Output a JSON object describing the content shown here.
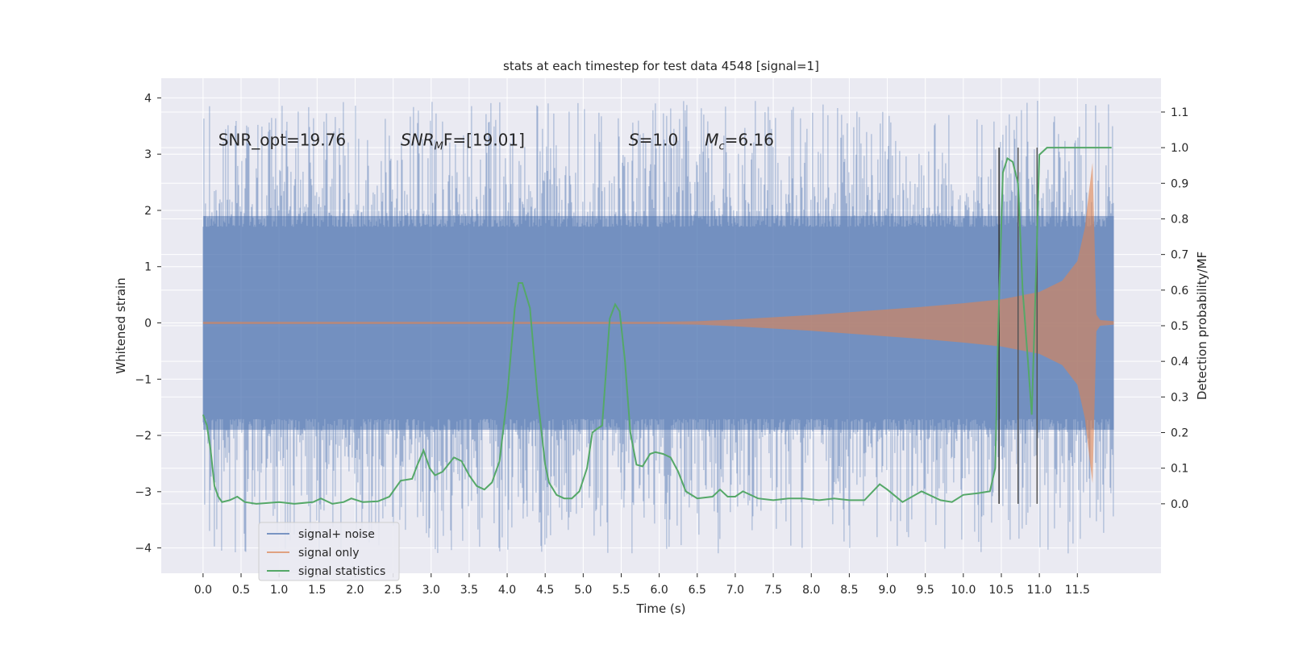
{
  "chart_data": {
    "type": "line",
    "title": "stats at each timestep for test data 4548 [signal=1]",
    "xlabel": "Time (s)",
    "ylabel": "Whitened strain",
    "y2label": "Detection probability/MF",
    "xlim": [
      -0.55,
      12.6
    ],
    "ylim": [
      -4.45,
      4.35
    ],
    "y2lim": [
      -0.195,
      1.195
    ],
    "xticks": [
      0.0,
      0.5,
      1.0,
      1.5,
      2.0,
      2.5,
      3.0,
      3.5,
      4.0,
      4.5,
      5.0,
      5.5,
      6.0,
      6.5,
      7.0,
      7.5,
      8.0,
      8.5,
      9.0,
      9.5,
      10.0,
      10.5,
      11.0,
      11.5
    ],
    "xtick_labels": [
      "0.0",
      "0.5",
      "1.0",
      "1.5",
      "2.0",
      "2.5",
      "3.0",
      "3.5",
      "4.0",
      "4.5",
      "5.0",
      "5.5",
      "6.0",
      "6.5",
      "7.0",
      "7.5",
      "8.0",
      "8.5",
      "9.0",
      "9.5",
      "10.0",
      "10.5",
      "11.0",
      "11.5"
    ],
    "yticks": [
      4,
      3,
      2,
      1,
      0,
      -1,
      -2,
      -3,
      -4
    ],
    "ytick_labels": [
      "4",
      "3",
      "2",
      "1",
      "0",
      "−1",
      "−2",
      "−3",
      "−4"
    ],
    "y2ticks": [
      1.1,
      1.0,
      0.9,
      0.8,
      0.7,
      0.6,
      0.5,
      0.4,
      0.3,
      0.2,
      0.1,
      0.0
    ],
    "y2tick_labels": [
      "1.1",
      "1.0",
      "0.9",
      "0.8",
      "0.7",
      "0.6",
      "0.5",
      "0.4",
      "0.3",
      "0.2",
      "0.1",
      "0.0"
    ],
    "grid": true,
    "legend_position": "lower-left",
    "annotations": [
      {
        "main": "SNR_opt=19.76",
        "sub": "",
        "rest": "",
        "x": 0.2,
        "y": 3.15
      },
      {
        "main": "SNR",
        "sub": "M",
        "rest": "F=[19.01]",
        "x": 2.6,
        "y": 3.15
      },
      {
        "main": "S",
        "sub": "",
        "rest": "=1.0",
        "x": 5.6,
        "y": 3.15
      },
      {
        "main": "M",
        "sub": "c",
        "rest": "=6.16",
        "x": 6.6,
        "y": 3.15
      }
    ],
    "series": [
      {
        "name": "signal+ noise",
        "kind": "noise-band",
        "color": "#4c72b0",
        "opacity": 0.5,
        "x_range": [
          0.0,
          11.98
        ],
        "typical_range": [
          -1.9,
          1.9
        ],
        "extreme_range": [
          -4.1,
          3.95
        ]
      },
      {
        "name": "signal only",
        "kind": "chirp-envelope",
        "color": "#dd8452",
        "opacity": 0.6,
        "envelope": [
          [
            0.0,
            0.02
          ],
          [
            6.0,
            0.02
          ],
          [
            6.5,
            0.03
          ],
          [
            7.0,
            0.06
          ],
          [
            7.5,
            0.1
          ],
          [
            8.0,
            0.14
          ],
          [
            8.5,
            0.19
          ],
          [
            9.0,
            0.24
          ],
          [
            9.5,
            0.29
          ],
          [
            10.0,
            0.35
          ],
          [
            10.5,
            0.42
          ],
          [
            11.0,
            0.55
          ],
          [
            11.3,
            0.75
          ],
          [
            11.5,
            1.1
          ],
          [
            11.6,
            1.7
          ],
          [
            11.65,
            2.3
          ],
          [
            11.7,
            2.85
          ],
          [
            11.72,
            1.8
          ],
          [
            11.75,
            0.15
          ],
          [
            11.8,
            0.05
          ],
          [
            11.98,
            0.03
          ]
        ]
      },
      {
        "name": "signal statistics",
        "kind": "line",
        "color": "#55a868",
        "axis": "right",
        "points": [
          [
            0.0,
            0.25
          ],
          [
            0.05,
            0.22
          ],
          [
            0.1,
            0.15
          ],
          [
            0.15,
            0.05
          ],
          [
            0.2,
            0.02
          ],
          [
            0.25,
            0.005
          ],
          [
            0.35,
            0.01
          ],
          [
            0.45,
            0.02
          ],
          [
            0.55,
            0.005
          ],
          [
            0.7,
            0.0
          ],
          [
            0.9,
            0.003
          ],
          [
            1.0,
            0.005
          ],
          [
            1.2,
            0.0
          ],
          [
            1.45,
            0.005
          ],
          [
            1.55,
            0.015
          ],
          [
            1.7,
            0.0
          ],
          [
            1.85,
            0.005
          ],
          [
            1.95,
            0.015
          ],
          [
            2.1,
            0.005
          ],
          [
            2.3,
            0.007
          ],
          [
            2.45,
            0.02
          ],
          [
            2.6,
            0.065
          ],
          [
            2.75,
            0.07
          ],
          [
            2.82,
            0.11
          ],
          [
            2.9,
            0.15
          ],
          [
            2.98,
            0.1
          ],
          [
            3.05,
            0.08
          ],
          [
            3.15,
            0.09
          ],
          [
            3.3,
            0.13
          ],
          [
            3.4,
            0.12
          ],
          [
            3.5,
            0.08
          ],
          [
            3.6,
            0.05
          ],
          [
            3.7,
            0.04
          ],
          [
            3.8,
            0.06
          ],
          [
            3.9,
            0.12
          ],
          [
            4.0,
            0.3
          ],
          [
            4.1,
            0.55
          ],
          [
            4.15,
            0.62
          ],
          [
            4.2,
            0.62
          ],
          [
            4.3,
            0.55
          ],
          [
            4.4,
            0.3
          ],
          [
            4.5,
            0.11
          ],
          [
            4.55,
            0.06
          ],
          [
            4.65,
            0.025
          ],
          [
            4.75,
            0.015
          ],
          [
            4.85,
            0.015
          ],
          [
            4.95,
            0.035
          ],
          [
            5.05,
            0.1
          ],
          [
            5.12,
            0.2
          ],
          [
            5.18,
            0.21
          ],
          [
            5.25,
            0.22
          ],
          [
            5.35,
            0.52
          ],
          [
            5.42,
            0.56
          ],
          [
            5.48,
            0.54
          ],
          [
            5.55,
            0.4
          ],
          [
            5.62,
            0.2
          ],
          [
            5.7,
            0.11
          ],
          [
            5.78,
            0.105
          ],
          [
            5.88,
            0.14
          ],
          [
            5.95,
            0.145
          ],
          [
            6.05,
            0.14
          ],
          [
            6.15,
            0.13
          ],
          [
            6.25,
            0.09
          ],
          [
            6.35,
            0.035
          ],
          [
            6.5,
            0.015
          ],
          [
            6.7,
            0.02
          ],
          [
            6.8,
            0.04
          ],
          [
            6.9,
            0.02
          ],
          [
            7.0,
            0.02
          ],
          [
            7.1,
            0.035
          ],
          [
            7.3,
            0.015
          ],
          [
            7.5,
            0.01
          ],
          [
            7.7,
            0.015
          ],
          [
            7.9,
            0.015
          ],
          [
            8.1,
            0.01
          ],
          [
            8.3,
            0.015
          ],
          [
            8.5,
            0.01
          ],
          [
            8.7,
            0.01
          ],
          [
            8.9,
            0.055
          ],
          [
            9.0,
            0.04
          ],
          [
            9.2,
            0.005
          ],
          [
            9.45,
            0.035
          ],
          [
            9.7,
            0.01
          ],
          [
            9.85,
            0.005
          ],
          [
            10.0,
            0.025
          ],
          [
            10.2,
            0.03
          ],
          [
            10.35,
            0.035
          ],
          [
            10.42,
            0.1
          ],
          [
            10.46,
            0.5
          ],
          [
            10.52,
            0.93
          ],
          [
            10.58,
            0.97
          ],
          [
            10.65,
            0.96
          ],
          [
            10.72,
            0.9
          ],
          [
            10.78,
            0.6
          ],
          [
            10.85,
            0.4
          ],
          [
            10.9,
            0.25
          ],
          [
            10.95,
            0.6
          ],
          [
            11.0,
            0.98
          ],
          [
            11.05,
            0.99
          ],
          [
            11.1,
            1.0
          ],
          [
            11.3,
            1.0
          ],
          [
            11.6,
            1.0
          ],
          [
            11.95,
            1.0
          ]
        ]
      }
    ],
    "vlines": [
      {
        "x": 10.47,
        "color": "#333333",
        "range": [
          0.0,
          1.0
        ]
      },
      {
        "x": 10.72,
        "color": "#555555",
        "range": [
          0.0,
          1.0
        ]
      },
      {
        "x": 10.97,
        "color": "#555555",
        "range": [
          0.0,
          1.0
        ]
      }
    ]
  }
}
